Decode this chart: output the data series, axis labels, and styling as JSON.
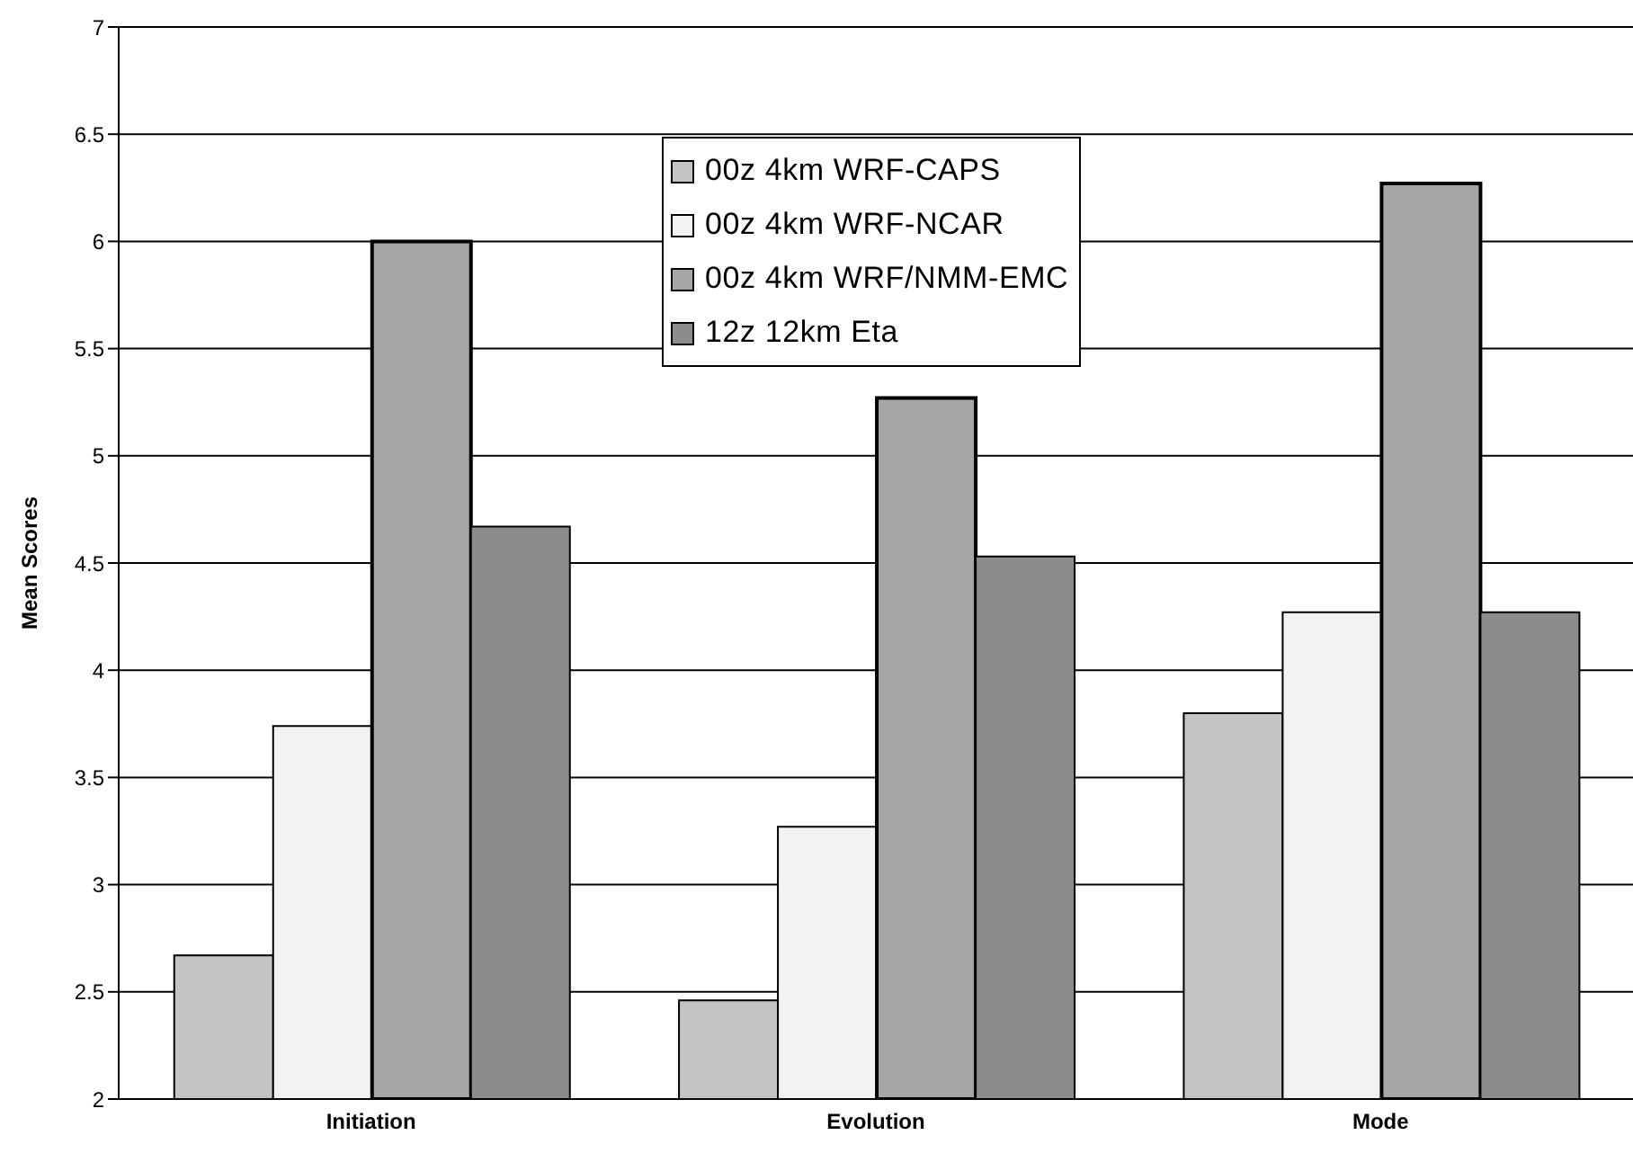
{
  "chart_data": {
    "type": "bar",
    "ylabel": "Mean Scores",
    "categories": [
      "Initiation",
      "Evolution",
      "Mode"
    ],
    "series": [
      {
        "name": "00z 4km WRF-CAPS",
        "color": "#c4c4c4",
        "values": [
          2.67,
          2.46,
          3.8
        ]
      },
      {
        "name": "00z 4km WRF-NCAR",
        "color": "#f2f2f2",
        "values": [
          3.74,
          3.27,
          4.27
        ]
      },
      {
        "name": "00z 4km WRF/NMM-EMC",
        "color": "#a6a6a6",
        "values": [
          6.0,
          5.27,
          6.27
        ]
      },
      {
        "name": "12z 12km Eta",
        "color": "#8c8c8c",
        "values": [
          4.67,
          4.53,
          4.27
        ]
      }
    ],
    "ylim": [
      2,
      7
    ],
    "yticks": [
      2,
      2.5,
      3,
      3.5,
      4,
      4.5,
      5,
      5.5,
      6,
      6.5,
      7
    ],
    "grid": "y",
    "legend": "top"
  }
}
